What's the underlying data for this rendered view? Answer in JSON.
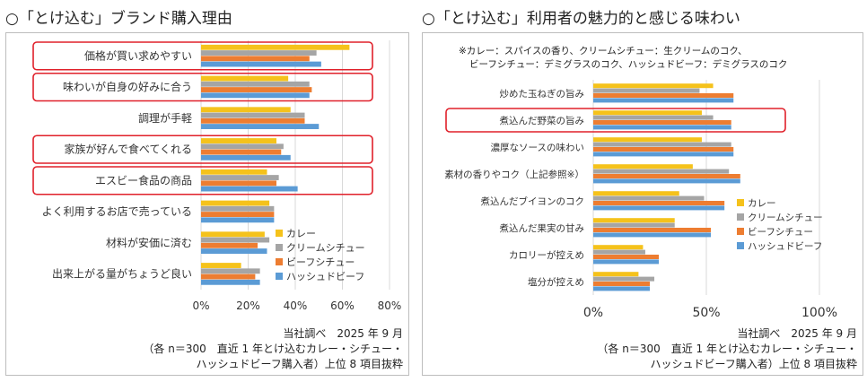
{
  "titles": {
    "left": "○「とけ込む」ブランド購入理由",
    "right": "○「とけ込む」利用者の魅力的と感じる味わい"
  },
  "legend": [
    "カレー",
    "クリームシチュー",
    "ビーフシチュー",
    "ハッシュドビーフ"
  ],
  "colors": {
    "curry": "#f5c21b",
    "cream": "#a5a5a5",
    "beef": "#ed7d31",
    "hashed": "#5b9bd5",
    "highlight": "#e0202a",
    "grid": "#d9d9d9"
  },
  "notes": {
    "line1": "※カレー：スパイスの香り、クリームシチュー：生クリームのコク、",
    "line2": "ビーフシチュー：デミグラスのコク、ハッシュドビーフ：デミグラスのコク"
  },
  "source": {
    "line1": "当社調べ　2025 年 9 月",
    "line2": "（各 n＝300　直近 1 年とけ込むカレー・シチュー・",
    "line3": "ハッシュドビーフ購入者）上位 8 項目抜粋"
  },
  "chart_data": [
    {
      "type": "bar",
      "orientation": "horizontal",
      "title": "○「とけ込む」ブランド購入理由",
      "categories": [
        "価格が買い求めやすい",
        "味わいが自身の好みに合う",
        "調理が手軽",
        "家族が好んで食べてくれる",
        "エスビー食品の商品",
        "よく利用するお店で売っている",
        "材料が安価に済む",
        "出来上がる量がちょうど良い"
      ],
      "series": [
        {
          "name": "カレー",
          "values": [
            63,
            37,
            38,
            32,
            28,
            29,
            27,
            17
          ]
        },
        {
          "name": "クリームシチュー",
          "values": [
            49,
            46,
            44,
            35,
            33,
            31,
            29,
            25
          ]
        },
        {
          "name": "ビーフシチュー",
          "values": [
            46,
            47,
            44,
            34,
            32,
            31,
            24,
            23
          ]
        },
        {
          "name": "ハッシュドビーフ",
          "values": [
            51,
            46,
            50,
            38,
            41,
            31,
            28,
            25
          ]
        }
      ],
      "xlim": [
        0,
        80
      ],
      "ticks": [
        "0%",
        "20%",
        "40%",
        "60%",
        "80%"
      ],
      "highlighted": [
        "価格が買い求めやすい",
        "味わいが自身の好みに合う",
        "家族が好んで食べてくれる",
        "エスビー食品の商品"
      ],
      "grid": true,
      "legend_position": "bottom-right"
    },
    {
      "type": "bar",
      "orientation": "horizontal",
      "title": "○「とけ込む」利用者の魅力的と感じる味わい",
      "categories": [
        "炒めた玉ねぎの旨み",
        "煮込んだ野菜の旨み",
        "濃厚なソースの味わい",
        "素材の香りやコク（上記参照※）",
        "煮込んだブイヨンのコク",
        "煮込んだ果実の甘み",
        "カロリーが控えめ",
        "塩分が控えめ"
      ],
      "series": [
        {
          "name": "カレー",
          "values": [
            53,
            48,
            48,
            44,
            38,
            36,
            22,
            20
          ]
        },
        {
          "name": "クリームシチュー",
          "values": [
            47,
            53,
            61,
            60,
            49,
            36,
            23,
            27
          ]
        },
        {
          "name": "ビーフシチュー",
          "values": [
            62,
            61,
            62,
            65,
            58,
            52,
            29,
            25
          ]
        },
        {
          "name": "ハッシュドビーフ",
          "values": [
            62,
            61,
            62,
            65,
            58,
            52,
            29,
            25
          ]
        }
      ],
      "xlim": [
        0,
        100
      ],
      "ticks": [
        "0%",
        "50%",
        "100%"
      ],
      "highlighted": [
        "煮込んだ野菜の旨み"
      ],
      "grid": true,
      "legend_position": "right"
    }
  ]
}
